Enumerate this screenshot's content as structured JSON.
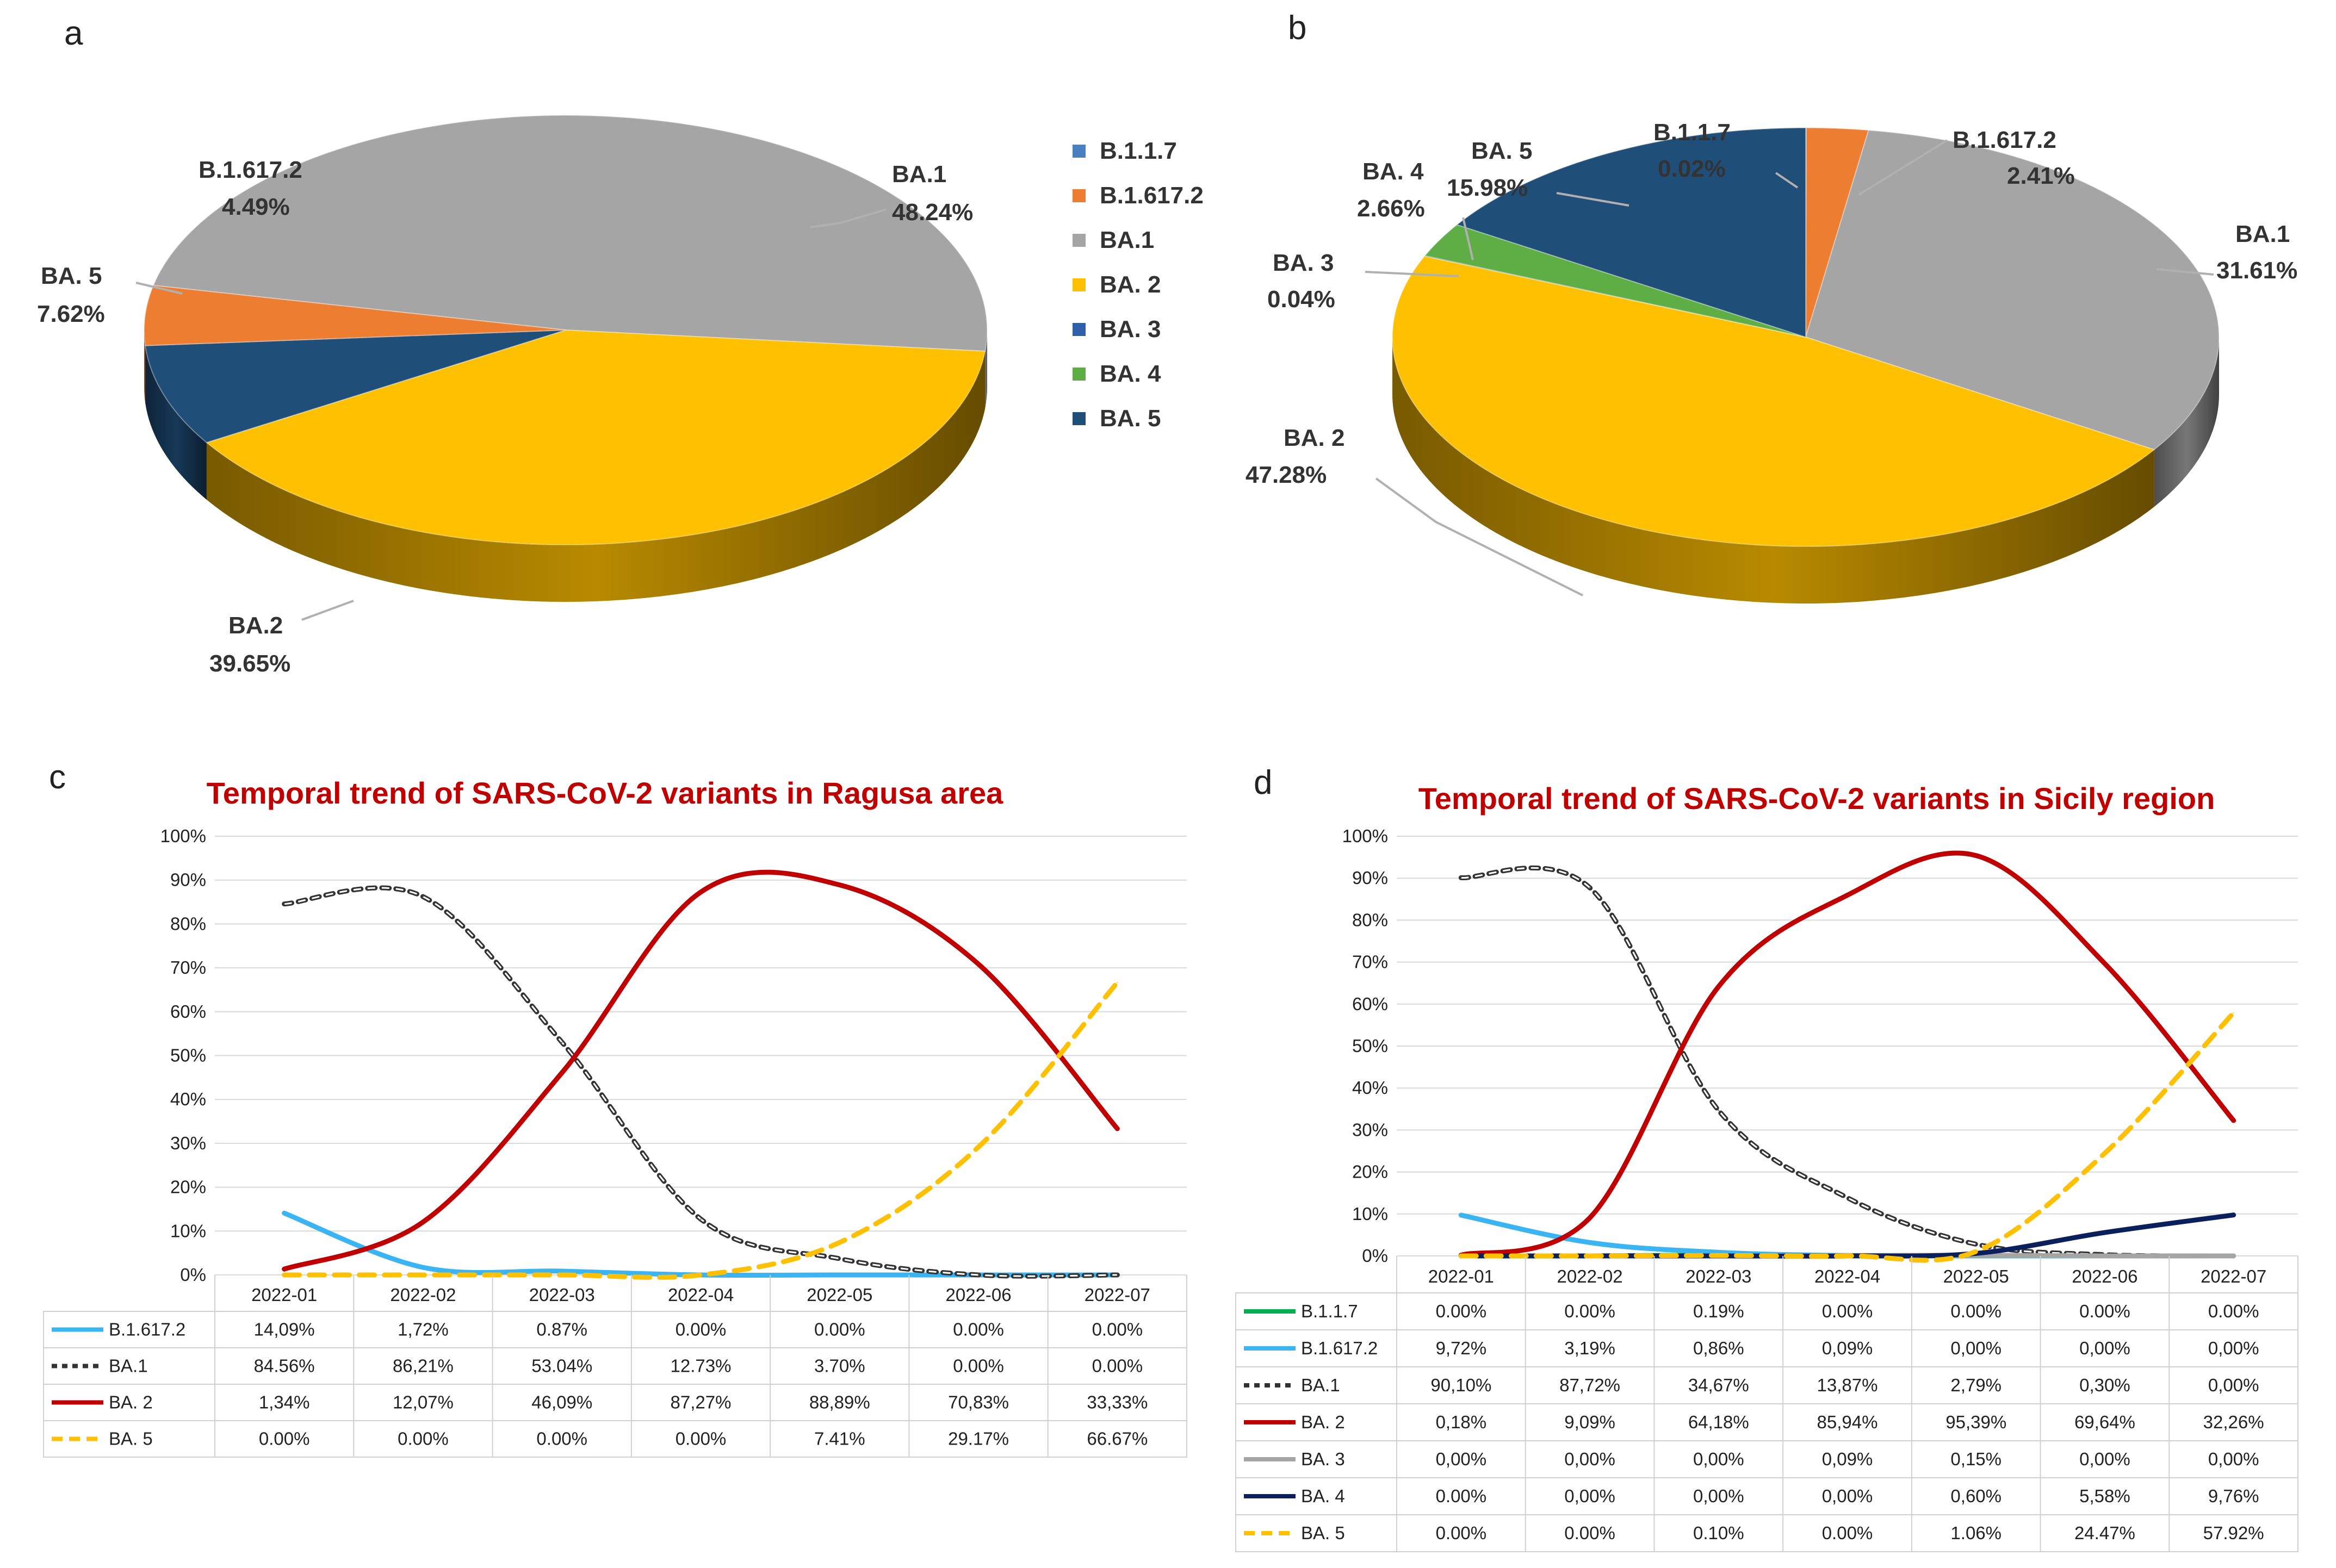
{
  "panels": {
    "a": "a",
    "b": "b",
    "c": "c",
    "d": "d"
  },
  "legend": {
    "items": [
      {
        "label": "B.1.1.7",
        "color": "#4a7fc1"
      },
      {
        "label": "B.1.617.2",
        "color": "#ed7d31"
      },
      {
        "label": "BA.1",
        "color": "#a5a5a5"
      },
      {
        "label": "BA. 2",
        "color": "#ffc000"
      },
      {
        "label": "BA. 3",
        "color": "#2f5fa8"
      },
      {
        "label": "BA. 4",
        "color": "#5fae45"
      },
      {
        "label": "BA. 5",
        "color": "#1f4e79"
      }
    ]
  },
  "chart_data": [
    {
      "id": "a",
      "type": "pie",
      "title": "",
      "slices": [
        {
          "label": "BA.1",
          "value": 48.24,
          "text": "48.24%",
          "color": "#a5a5a5"
        },
        {
          "label": "BA.2",
          "value": 39.65,
          "text": "39.65%",
          "color": "#ffc000"
        },
        {
          "label": "BA. 5",
          "value": 7.62,
          "text": "7.62%",
          "color": "#1f4e79"
        },
        {
          "label": "B.1.617.2",
          "value": 4.49,
          "text": "4.49%",
          "color": "#ed7d31"
        }
      ]
    },
    {
      "id": "b",
      "type": "pie",
      "title": "",
      "slices": [
        {
          "label": "B.1.1.7",
          "value": 0.02,
          "text": "0.02%",
          "color": "#4a7fc1"
        },
        {
          "label": "B.1.617.2",
          "value": 2.41,
          "text": "2.41%",
          "color": "#ed7d31"
        },
        {
          "label": "BA.1",
          "value": 31.61,
          "text": "31.61%",
          "color": "#a5a5a5"
        },
        {
          "label": "BA. 2",
          "value": 47.28,
          "text": "47.28%",
          "color": "#ffc000"
        },
        {
          "label": "BA. 3",
          "value": 0.04,
          "text": "0.04%",
          "color": "#2f5fa8"
        },
        {
          "label": "BA. 4",
          "value": 2.66,
          "text": "2.66%",
          "color": "#5fae45"
        },
        {
          "label": "BA. 5",
          "value": 15.98,
          "text": "15.98%",
          "color": "#1f4e79"
        }
      ]
    },
    {
      "id": "c",
      "type": "line",
      "title": "Temporal trend of SARS-CoV-2 variants in Ragusa area",
      "ylim": [
        0,
        100
      ],
      "yticks": [
        "0%",
        "10%",
        "20%",
        "30%",
        "40%",
        "50%",
        "60%",
        "70%",
        "80%",
        "90%",
        "100%"
      ],
      "categories": [
        "2022-01",
        "2022-02",
        "2022-03",
        "2022-04",
        "2022-05",
        "2022-06",
        "2022-07"
      ],
      "series": [
        {
          "name": "B.1.617.2",
          "color": "#3ab4f2",
          "dash": "",
          "values": [
            14.09,
            1.72,
            0.87,
            0.0,
            0.0,
            0.0,
            0.0
          ],
          "labels": [
            "14,09%",
            "1,72%",
            "0.87%",
            "0.00%",
            "0.00%",
            "0.00%",
            "0.00%"
          ]
        },
        {
          "name": "BA.1",
          "color": "#333333",
          "dash": "dotted",
          "values": [
            84.56,
            86.21,
            53.04,
            12.73,
            3.7,
            0.0,
            0.0
          ],
          "labels": [
            "84.56%",
            "86,21%",
            "53.04%",
            "12.73%",
            "3.70%",
            "0.00%",
            "0.00%"
          ]
        },
        {
          "name": "BA. 2",
          "color": "#c00000",
          "dash": "",
          "values": [
            1.34,
            12.07,
            46.09,
            87.27,
            88.89,
            70.83,
            33.33
          ],
          "labels": [
            "1,34%",
            "12,07%",
            "46,09%",
            "87,27%",
            "88,89%",
            "70,83%",
            "33,33%"
          ]
        },
        {
          "name": "BA. 5",
          "color": "#ffc000",
          "dash": "dashed",
          "values": [
            0.0,
            0.0,
            0.0,
            0.0,
            7.41,
            29.17,
            66.67
          ],
          "labels": [
            "0.00%",
            "0.00%",
            "0.00%",
            "0.00%",
            "7.41%",
            "29.17%",
            "66.67%"
          ]
        }
      ]
    },
    {
      "id": "d",
      "type": "line",
      "title": "Temporal trend of SARS-CoV-2 variants in Sicily region",
      "ylim": [
        0,
        100
      ],
      "yticks": [
        "0%",
        "10%",
        "20%",
        "30%",
        "40%",
        "50%",
        "60%",
        "70%",
        "80%",
        "90%",
        "100%"
      ],
      "categories": [
        "2022-01",
        "2022-02",
        "2022-03",
        "2022-04",
        "2022-05",
        "2022-06",
        "2022-07"
      ],
      "series": [
        {
          "name": "B.1.1.7",
          "color": "#00b050",
          "dash": "",
          "values": [
            0.0,
            0.0,
            0.19,
            0.0,
            0.0,
            0.0,
            0.0
          ],
          "labels": [
            "0.00%",
            "0.00%",
            "0.19%",
            "0.00%",
            "0.00%",
            "0.00%",
            "0.00%"
          ]
        },
        {
          "name": "B.1.617.2",
          "color": "#3ab4f2",
          "dash": "",
          "values": [
            9.72,
            3.19,
            0.86,
            0.09,
            0.0,
            0.0,
            0.0
          ],
          "labels": [
            "9,72%",
            "3,19%",
            "0,86%",
            "0,09%",
            "0,00%",
            "0,00%",
            "0,00%"
          ]
        },
        {
          "name": "BA.1",
          "color": "#333333",
          "dash": "dotted",
          "values": [
            90.1,
            87.72,
            34.67,
            13.87,
            2.79,
            0.3,
            0.0
          ],
          "labels": [
            "90,10%",
            "87,72%",
            "34,67%",
            "13,87%",
            "2,79%",
            "0,30%",
            "0,00%"
          ]
        },
        {
          "name": "BA. 2",
          "color": "#c00000",
          "dash": "",
          "values": [
            0.18,
            9.09,
            64.18,
            85.94,
            95.39,
            69.64,
            32.26
          ],
          "labels": [
            "0,18%",
            "9,09%",
            "64,18%",
            "85,94%",
            "95,39%",
            "69,64%",
            "32,26%"
          ]
        },
        {
          "name": "BA. 3",
          "color": "#a5a5a5",
          "dash": "",
          "values": [
            0.0,
            0.0,
            0.0,
            0.09,
            0.15,
            0.0,
            0.0
          ],
          "labels": [
            "0,00%",
            "0,00%",
            "0,00%",
            "0,09%",
            "0,15%",
            "0,00%",
            "0,00%"
          ]
        },
        {
          "name": "BA. 4",
          "color": "#0b1f5c",
          "dash": "",
          "values": [
            0.0,
            0.0,
            0.0,
            0.0,
            0.6,
            5.58,
            9.76
          ],
          "labels": [
            "0.00%",
            "0,00%",
            "0,00%",
            "0,00%",
            "0,60%",
            "5,58%",
            "9,76%"
          ]
        },
        {
          "name": "BA. 5",
          "color": "#ffc000",
          "dash": "dashed",
          "values": [
            0.0,
            0.0,
            0.1,
            0.0,
            1.06,
            24.47,
            57.92
          ],
          "labels": [
            "0.00%",
            "0.00%",
            "0.10%",
            "0.00%",
            "1.06%",
            "24.47%",
            "57.92%"
          ]
        }
      ]
    }
  ]
}
